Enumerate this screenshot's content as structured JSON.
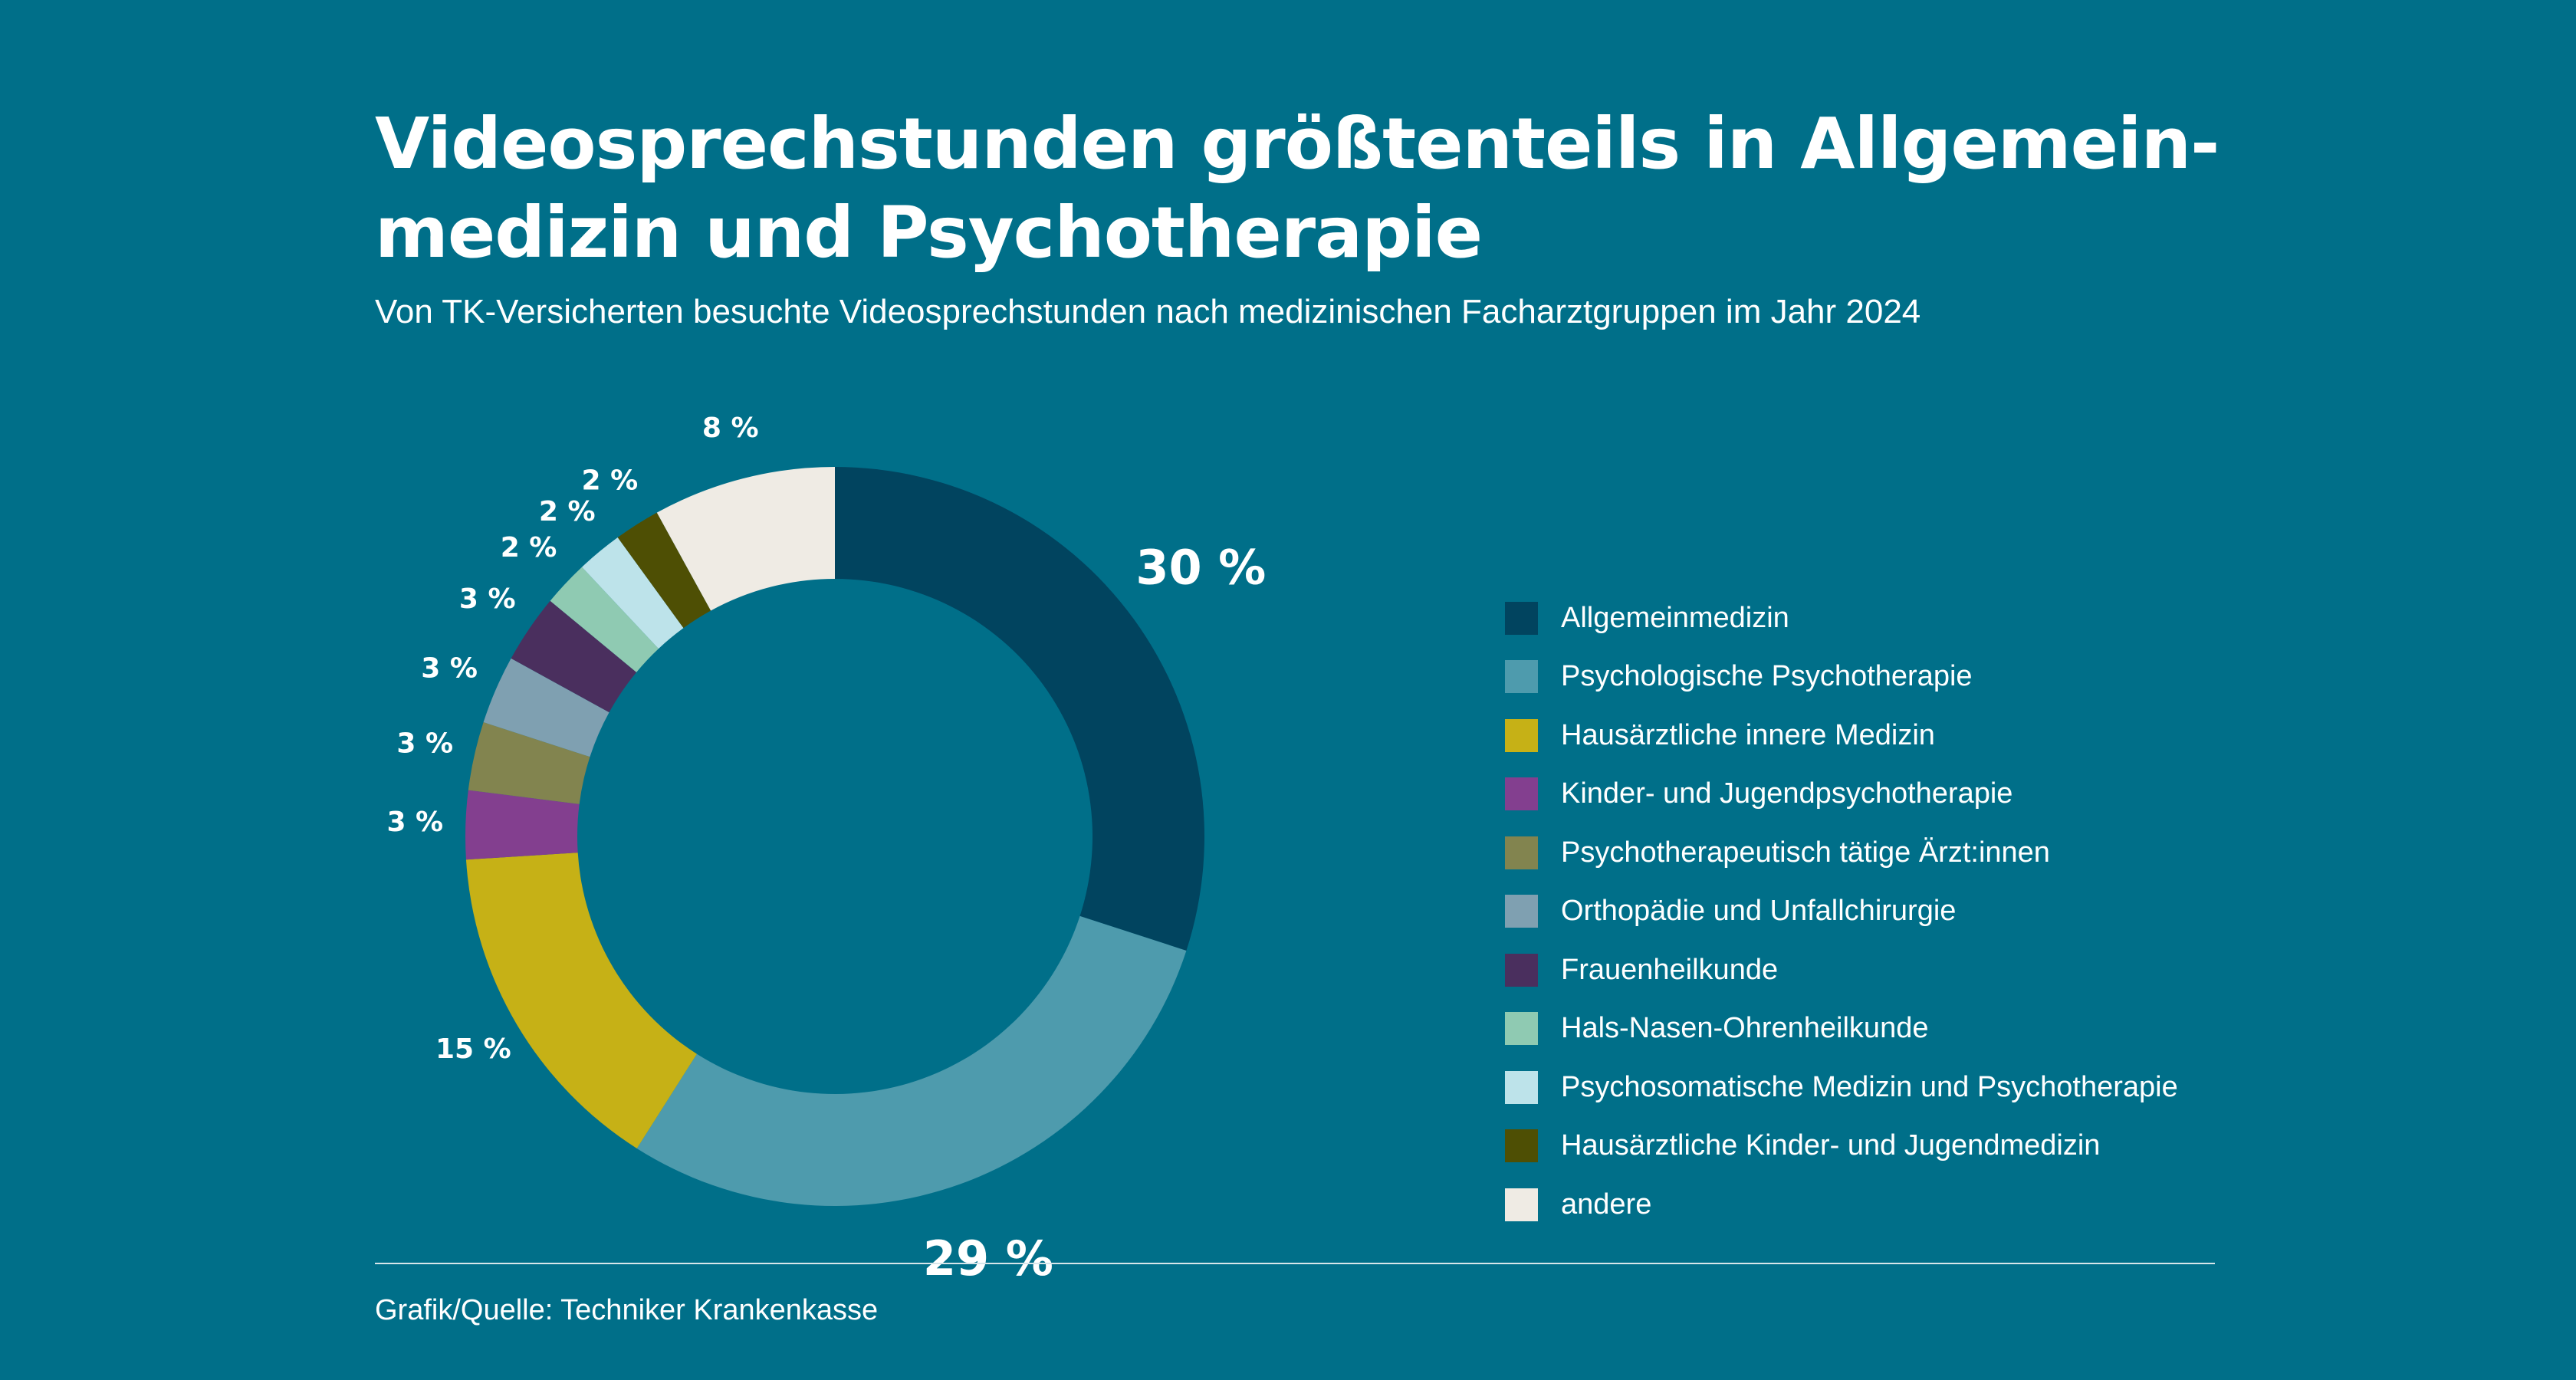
{
  "header": {
    "title": "Videosprechstunden größtenteils in Allgemein-medizin und Psychotherapie",
    "title_line1": "Videosprechstunden größtenteils in Allgemein-",
    "title_line2": "medizin und Psychotherapie",
    "subtitle": "Von TK-Versicherten besuchte Videosprechstunden nach medizinischen Facharztgruppen im Jahr 2024"
  },
  "chart_data": {
    "type": "pie",
    "variant": "donut",
    "start": "top",
    "direction": "clockwise",
    "legend_placement": "right",
    "unit": "%",
    "slices": [
      {
        "label": "Allgemeinmedizin",
        "value": 30,
        "value_label": "30 %",
        "color": "#01445f",
        "emphasis": true
      },
      {
        "label": "Psychologische Psychotherapie",
        "value": 29,
        "value_label": "29 %",
        "color": "#4e9bad",
        "emphasis": true
      },
      {
        "label": "Hausärztliche innere Medizin",
        "value": 15,
        "value_label": "15 %",
        "color": "#c6b116"
      },
      {
        "label": "Kinder- und Jugendpsychotherapie",
        "value": 3,
        "value_label": "3 %",
        "color": "#833f8f"
      },
      {
        "label": "Psychotherapeutisch tätige Ärzt:innen",
        "value": 3,
        "value_label": "3 %",
        "color": "#82844f"
      },
      {
        "label": "Orthopädie und Unfallchirurgie",
        "value": 3,
        "value_label": "3 %",
        "color": "#7fa0b1"
      },
      {
        "label": "Frauenheilkunde",
        "value": 3,
        "value_label": "3 %",
        "color": "#4a2f5e"
      },
      {
        "label": "Hals-Nasen-Ohrenheilkunde",
        "value": 2,
        "value_label": "2 %",
        "color": "#8fcab2"
      },
      {
        "label": "Psychosomatische Medizin und Psychotherapie",
        "value": 2,
        "value_label": "2 %",
        "color": "#bde3ea"
      },
      {
        "label": "Hausärztliche Kinder- und Jugendmedizin",
        "value": 2,
        "value_label": "2 %",
        "color": "#4e4f04"
      },
      {
        "label": "andere",
        "value": 8,
        "value_label": "8 %",
        "color": "#efebe4"
      }
    ]
  },
  "footer": {
    "source": "Grafik/Quelle: Techniker Krankenkasse"
  },
  "colors": {
    "background": "#006f89",
    "text": "#ffffff"
  }
}
